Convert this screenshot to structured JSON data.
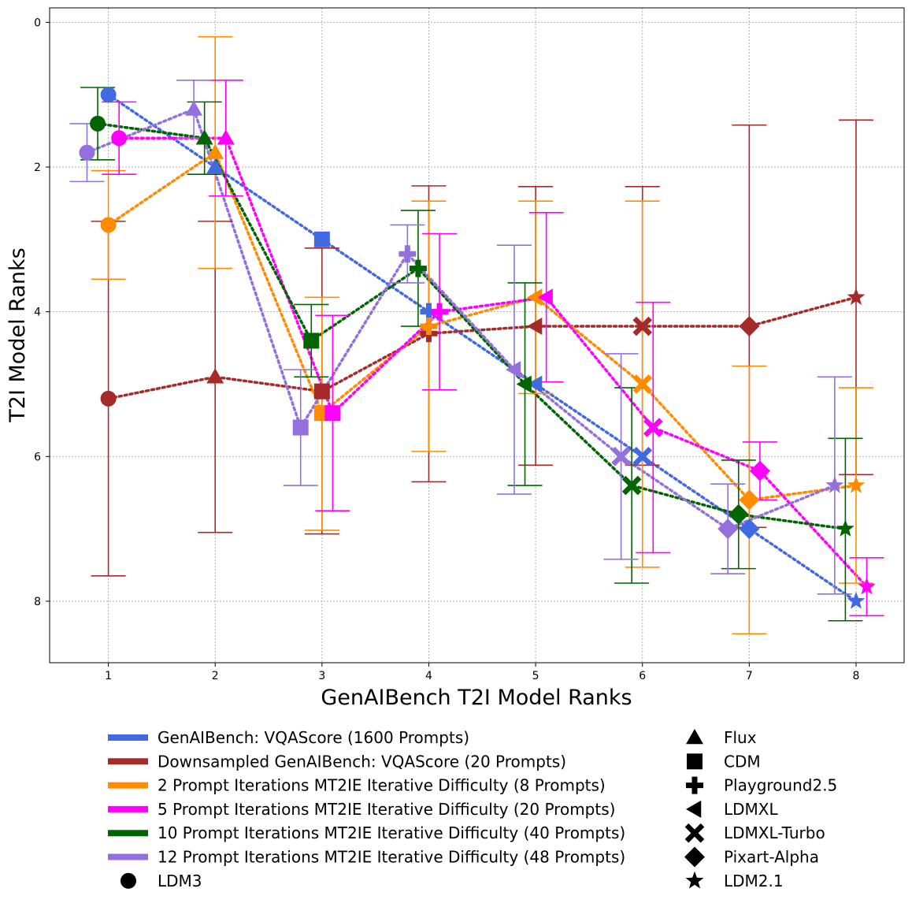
{
  "chart_data": {
    "type": "scatter",
    "title": "",
    "xlabel": "GenAIBench T2I Model Ranks",
    "ylabel": "T2I Model Ranks",
    "xlim": [
      0.45,
      8.45
    ],
    "ylim": [
      -0.2,
      8.85
    ],
    "y_inverted": true,
    "grid": true,
    "xticks": [
      "1",
      "2",
      "3",
      "4",
      "5",
      "6",
      "7",
      "8"
    ],
    "yticks": [
      "0",
      "2",
      "4",
      "6",
      "8"
    ],
    "models": [
      {
        "name": "LDM3",
        "marker": "circle"
      },
      {
        "name": "Flux",
        "marker": "triangle-up"
      },
      {
        "name": "CDM",
        "marker": "square"
      },
      {
        "name": "Playground2.5",
        "marker": "plus"
      },
      {
        "name": "LDMXL",
        "marker": "triangle-left"
      },
      {
        "name": "LDMXL-Turbo",
        "marker": "x"
      },
      {
        "name": "Pixart-Alpha",
        "marker": "diamond"
      },
      {
        "name": "LDM2.1",
        "marker": "star"
      }
    ],
    "series": [
      {
        "name": "GenAIBench: VQAScore (1600 Prompts)",
        "color": "#4169E1",
        "offset": 0,
        "values": [
          1.0,
          2.0,
          3.0,
          4.0,
          5.0,
          6.0,
          7.0,
          8.0
        ],
        "low": [
          null,
          null,
          null,
          null,
          null,
          null,
          null,
          null
        ],
        "high": [
          null,
          null,
          null,
          null,
          null,
          null,
          null,
          null
        ]
      },
      {
        "name": "Downsampled GenAIBench: VQAScore (20 Prompts)",
        "color": "#A52A2A",
        "offset": 0,
        "values": [
          5.2,
          4.9,
          5.1,
          4.3,
          4.2,
          4.2,
          4.2,
          3.8
        ],
        "low": [
          2.75,
          2.75,
          3.12,
          2.26,
          2.27,
          2.27,
          1.42,
          1.35
        ],
        "high": [
          7.65,
          7.05,
          7.07,
          6.35,
          6.12,
          6.12,
          6.98,
          6.25
        ]
      },
      {
        "name": "2 Prompt Iterations MT2IE Iterative Difficulty (8 Prompts)",
        "color": "#FF8C00",
        "offset": 0,
        "values": [
          2.8,
          1.8,
          5.4,
          4.2,
          3.8,
          5.0,
          6.6,
          6.4
        ],
        "low": [
          2.05,
          0.2,
          3.8,
          2.47,
          2.47,
          2.47,
          4.75,
          5.05
        ],
        "high": [
          3.55,
          3.4,
          7.02,
          5.93,
          5.13,
          7.53,
          8.45,
          7.75
        ]
      },
      {
        "name": "5 Prompt Iterations MT2IE Iterative Difficulty (20 Prompts)",
        "color": "#FF00FF",
        "offset": 0.1,
        "values": [
          1.6,
          1.6,
          5.4,
          4.0,
          3.8,
          5.6,
          6.2,
          7.8
        ],
        "low": [
          1.1,
          0.8,
          4.05,
          2.92,
          2.63,
          3.87,
          5.8,
          7.4
        ],
        "high": [
          2.1,
          2.4,
          6.75,
          5.08,
          4.97,
          7.33,
          6.6,
          8.2
        ]
      },
      {
        "name": "10 Prompt Iterations MT2IE Iterative Difficulty (40 Prompts)",
        "color": "#006400",
        "offset": -0.1,
        "values": [
          1.4,
          1.6,
          4.4,
          3.4,
          5.0,
          6.4,
          6.8,
          7.0
        ],
        "low": [
          0.9,
          1.1,
          3.9,
          2.6,
          3.6,
          5.05,
          6.05,
          5.75
        ],
        "high": [
          1.9,
          2.1,
          4.9,
          4.2,
          6.4,
          7.75,
          7.55,
          8.27
        ]
      },
      {
        "name": "12 Prompt Iterations MT2IE Iterative Difficulty (48 Prompts)",
        "color": "#9370DB",
        "offset": -0.2,
        "values": [
          1.8,
          1.2,
          5.6,
          3.2,
          4.8,
          6.0,
          7.0,
          6.4
        ],
        "low": [
          1.4,
          0.8,
          4.8,
          2.8,
          3.08,
          4.58,
          6.38,
          4.9
        ],
        "high": [
          2.2,
          1.6,
          6.4,
          3.6,
          6.52,
          7.42,
          7.62,
          7.9
        ]
      }
    ],
    "legend": {
      "placement": "below",
      "series_entries": [
        "GenAIBench: VQAScore (1600 Prompts)",
        "Downsampled GenAIBench: VQAScore (20 Prompts)",
        "2 Prompt Iterations MT2IE Iterative Difficulty (8 Prompts)",
        "5 Prompt Iterations MT2IE Iterative Difficulty (20 Prompts)",
        "10 Prompt Iterations MT2IE Iterative Difficulty (40 Prompts)",
        "12 Prompt Iterations MT2IE Iterative Difficulty (48 Prompts)"
      ],
      "marker_entries": [
        "LDM3",
        "Flux",
        "CDM",
        "Playground2.5",
        "LDMXL",
        "LDMXL-Turbo",
        "Pixart-Alpha",
        "LDM2.1"
      ]
    }
  }
}
